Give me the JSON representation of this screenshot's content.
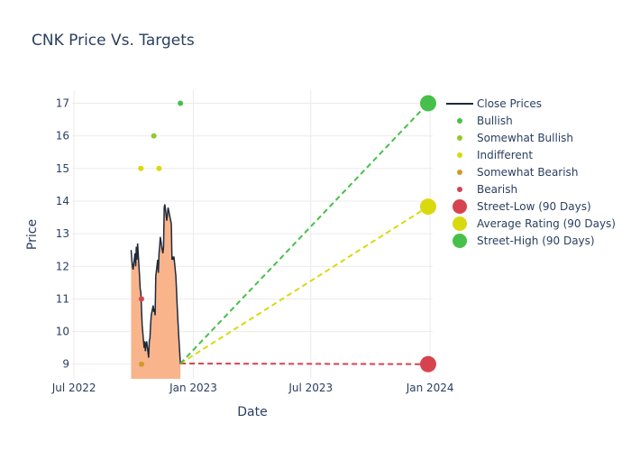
{
  "chart_data": {
    "type": "line",
    "title": "CNK Price Vs. Targets",
    "xlabel": "Date",
    "ylabel": "Price",
    "x_range": [
      "2022-06-28",
      "2024-01-05"
    ],
    "ylim": [
      8.55,
      17.4
    ],
    "x_ticks": [
      {
        "date": "2022-07-01",
        "label": "Jul 2022"
      },
      {
        "date": "2023-01-01",
        "label": "Jan 2023"
      },
      {
        "date": "2023-07-01",
        "label": "Jul 2023"
      },
      {
        "date": "2024-01-01",
        "label": "Jan 2024"
      }
    ],
    "y_ticks": [
      9,
      10,
      11,
      12,
      13,
      14,
      15,
      16,
      17
    ],
    "grid": true,
    "legend_position": "right",
    "close_prices": {
      "name": "Close Prices",
      "color": "#1f2a3a",
      "fill_color": "#f9b48c",
      "points": [
        [
          "2022-09-27",
          12.5
        ],
        [
          "2022-09-28",
          12.2
        ],
        [
          "2022-09-29",
          12.0
        ],
        [
          "2022-09-30",
          11.9
        ],
        [
          "2022-10-03",
          12.4
        ],
        [
          "2022-10-04",
          12.0
        ],
        [
          "2022-10-05",
          12.6
        ],
        [
          "2022-10-06",
          12.2
        ],
        [
          "2022-10-07",
          12.7
        ],
        [
          "2022-10-10",
          11.7
        ],
        [
          "2022-10-11",
          11.3
        ],
        [
          "2022-10-12",
          11.2
        ],
        [
          "2022-10-13",
          10.7
        ],
        [
          "2022-10-14",
          10.2
        ],
        [
          "2022-10-17",
          9.5
        ],
        [
          "2022-10-18",
          9.7
        ],
        [
          "2022-10-19",
          9.4
        ],
        [
          "2022-10-20",
          9.6
        ],
        [
          "2022-10-21",
          9.7
        ],
        [
          "2022-10-24",
          9.2
        ],
        [
          "2022-10-25",
          9.7
        ],
        [
          "2022-10-26",
          9.8
        ],
        [
          "2022-10-27",
          10.2
        ],
        [
          "2022-10-28",
          10.5
        ],
        [
          "2022-10-31",
          10.8
        ],
        [
          "2022-11-01",
          10.6
        ],
        [
          "2022-11-02",
          10.7
        ],
        [
          "2022-11-03",
          10.5
        ],
        [
          "2022-11-04",
          11.7
        ],
        [
          "2022-11-07",
          12.2
        ],
        [
          "2022-11-08",
          11.8
        ],
        [
          "2022-11-09",
          12.4
        ],
        [
          "2022-11-10",
          12.6
        ],
        [
          "2022-11-11",
          12.9
        ],
        [
          "2022-11-14",
          12.5
        ],
        [
          "2022-11-15",
          12.4
        ],
        [
          "2022-11-16",
          12.6
        ],
        [
          "2022-11-17",
          13.8
        ],
        [
          "2022-11-18",
          13.9
        ],
        [
          "2022-11-21",
          13.4
        ],
        [
          "2022-11-22",
          13.6
        ],
        [
          "2022-11-23",
          13.8
        ],
        [
          "2022-11-25",
          13.6
        ],
        [
          "2022-11-28",
          13.3
        ],
        [
          "2022-11-29",
          12.2
        ],
        [
          "2022-11-30",
          12.3
        ],
        [
          "2022-12-01",
          12.2
        ],
        [
          "2022-12-02",
          12.3
        ],
        [
          "2022-12-05",
          11.7
        ],
        [
          "2022-12-07",
          10.8
        ],
        [
          "2022-12-09",
          10.0
        ],
        [
          "2022-12-12",
          9.0
        ]
      ]
    },
    "rating_points": [
      {
        "date": "2022-10-12",
        "price": 15,
        "rating": "Indifferent",
        "color": "#d9d90f"
      },
      {
        "date": "2022-10-13",
        "price": 11,
        "rating": "Bearish",
        "color": "#d6434f"
      },
      {
        "date": "2022-10-13",
        "price": 9,
        "rating": "Somewhat Bearish",
        "color": "#d09a2b"
      },
      {
        "date": "2022-11-01",
        "price": 16,
        "rating": "Somewhat Bullish",
        "color": "#93c830"
      },
      {
        "date": "2022-11-09",
        "price": 15,
        "rating": "Indifferent",
        "color": "#d9d90f"
      },
      {
        "date": "2022-12-12",
        "price": 17,
        "rating": "Bullish",
        "color": "#46c04a"
      }
    ],
    "target_lines": [
      {
        "name": "Street-Low (90 Days)",
        "color": "#d6434f",
        "from": [
          "2022-12-12",
          9.02
        ],
        "to": [
          "2023-12-29",
          9.0
        ]
      },
      {
        "name": "Average Rating (90 Days)",
        "color": "#d9d90f",
        "from": [
          "2022-12-12",
          9.02
        ],
        "to": [
          "2023-12-29",
          13.83
        ]
      },
      {
        "name": "Street-High (90 Days)",
        "color": "#46c04a",
        "from": [
          "2022-12-12",
          9.02
        ],
        "to": [
          "2023-12-29",
          17.0
        ]
      }
    ],
    "legend": [
      {
        "label": "Close Prices",
        "kind": "line",
        "color": "#1f2a3a"
      },
      {
        "label": "Bullish",
        "kind": "dot",
        "color": "#46c04a"
      },
      {
        "label": "Somewhat Bullish",
        "kind": "dot",
        "color": "#93c830"
      },
      {
        "label": "Indifferent",
        "kind": "dot",
        "color": "#d9d90f"
      },
      {
        "label": "Somewhat Bearish",
        "kind": "dot",
        "color": "#d09a2b"
      },
      {
        "label": "Bearish",
        "kind": "dot",
        "color": "#d6434f"
      },
      {
        "label": "Street-Low (90 Days)",
        "kind": "bigdot",
        "color": "#d6434f"
      },
      {
        "label": "Average Rating (90 Days)",
        "kind": "bigdot",
        "color": "#d9d90f"
      },
      {
        "label": "Street-High (90 Days)",
        "kind": "bigdot",
        "color": "#46c04a"
      }
    ]
  }
}
